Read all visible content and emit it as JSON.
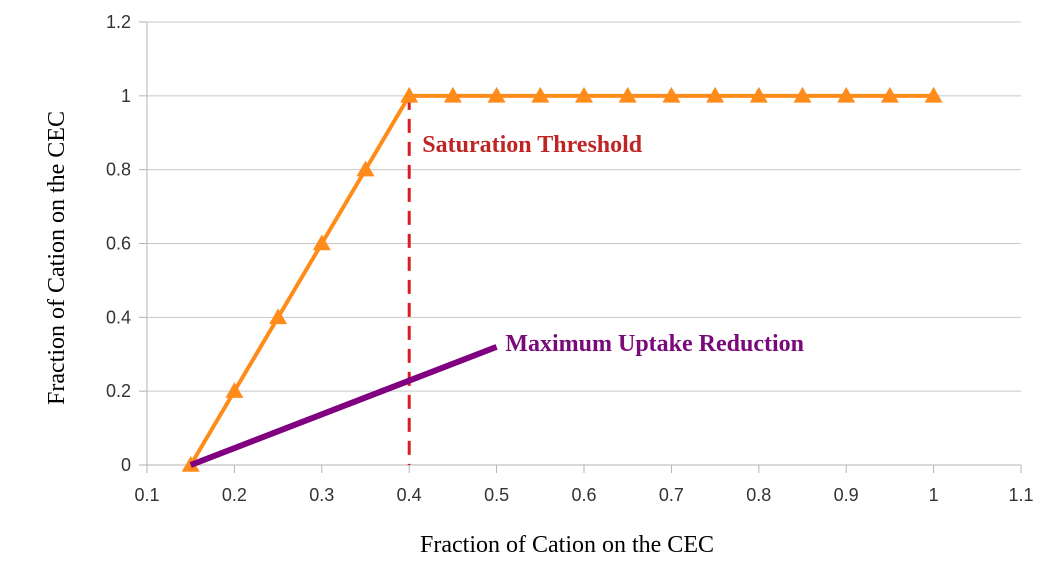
{
  "chart_data": {
    "type": "line",
    "title": "",
    "xlabel": "Fraction of Cation on the CEC",
    "ylabel": "Fraction of Cation on the CEC",
    "xlim": [
      0.1,
      1.1
    ],
    "ylim": [
      0,
      1.2
    ],
    "x_ticks": [
      "0.1",
      "0.2",
      "0.3",
      "0.4",
      "0.5",
      "0.6",
      "0.7",
      "0.8",
      "0.9",
      "1",
      "1.1"
    ],
    "y_ticks": [
      "0",
      "0.2",
      "0.4",
      "0.6",
      "0.8",
      "1",
      "1.2"
    ],
    "grid": "horizontal",
    "legend": "none",
    "series": [
      {
        "color": "#ff8c1a",
        "marker": "triangle",
        "x": [
          0.15,
          0.2,
          0.25,
          0.3,
          0.35,
          0.4,
          0.45,
          0.5,
          0.55,
          0.6,
          0.65,
          0.7,
          0.75,
          0.8,
          0.85,
          0.9,
          0.95,
          1.0
        ],
        "y": [
          0,
          0.2,
          0.4,
          0.6,
          0.8,
          1,
          1,
          1,
          1,
          1,
          1,
          1,
          1,
          1,
          1,
          1,
          1,
          1
        ]
      },
      {
        "color": "#800080",
        "marker": "none",
        "x": [
          0.15,
          0.5
        ],
        "y": [
          0,
          0.32
        ]
      }
    ],
    "threshold": {
      "x": 0.4,
      "y_range": [
        0,
        1
      ],
      "color": "#d42020",
      "style": "dashed"
    },
    "annotations": [
      {
        "text": "Saturation Threshold",
        "x": 0.415,
        "y": 0.87,
        "color": "#c02525"
      },
      {
        "text": "Maximum Uptake Reduction",
        "x": 0.51,
        "y": 0.33,
        "color": "#7a0a7a"
      }
    ]
  }
}
